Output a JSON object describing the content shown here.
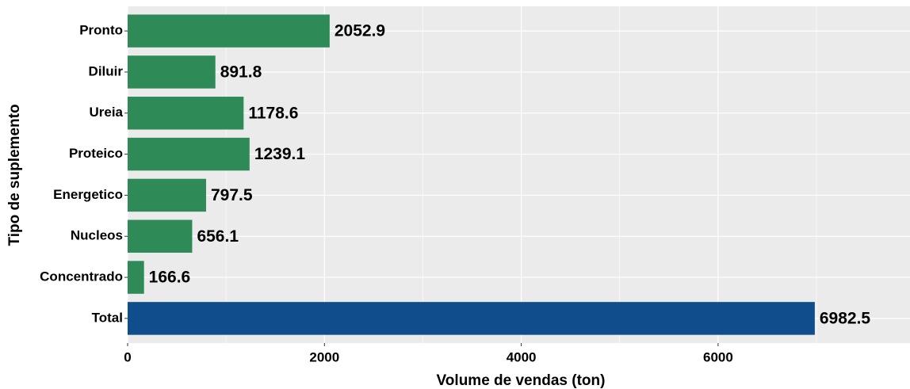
{
  "chart_data": {
    "type": "barh",
    "categories": [
      "Pronto",
      "Diluir",
      "Ureia",
      "Proteico",
      "Energetico",
      "Nucleos",
      "Concentrado",
      "Total"
    ],
    "values": [
      2052.9,
      891.8,
      1178.6,
      1239.1,
      797.5,
      656.1,
      166.6,
      6982.5
    ],
    "colors": [
      "#2e8b57",
      "#2e8b57",
      "#2e8b57",
      "#2e8b57",
      "#2e8b57",
      "#2e8b57",
      "#2e8b57",
      "#0f4d8c"
    ],
    "xlabel": "Volume de vendas (ton)",
    "ylabel": "Tipo de suplemento",
    "xlim": [
      0,
      7950
    ],
    "xticks": [
      0,
      2000,
      4000,
      6000
    ],
    "minor_xticks": [
      1000,
      3000,
      5000,
      7000
    ],
    "grid": true
  }
}
